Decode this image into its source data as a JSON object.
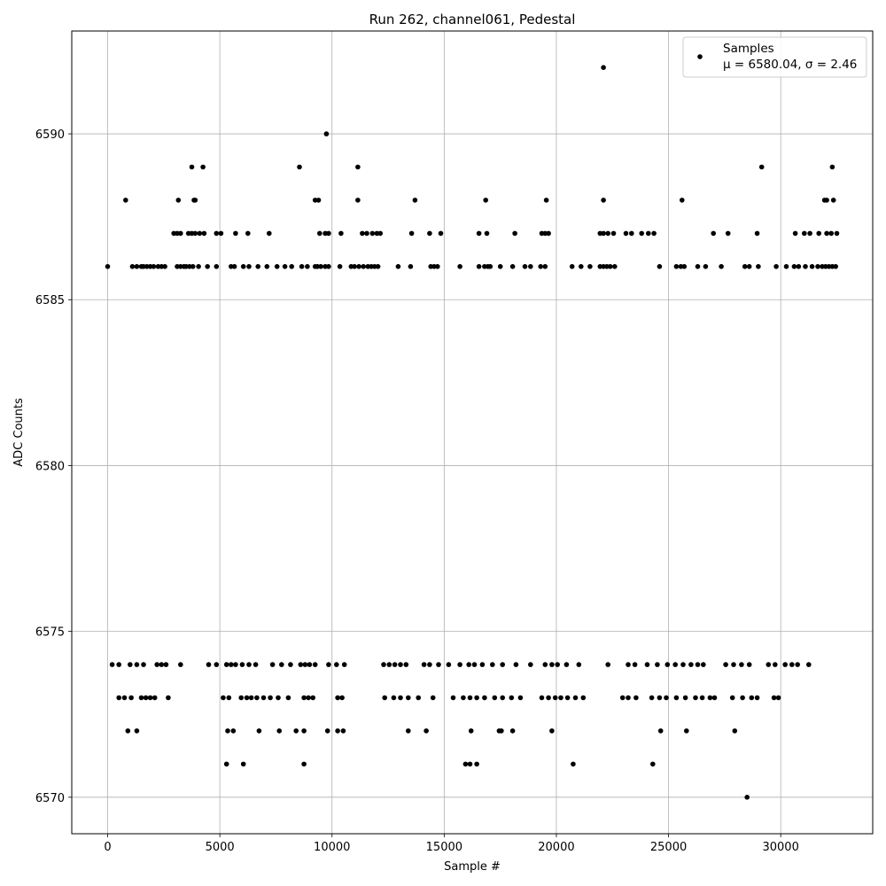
{
  "chart_data": {
    "type": "scatter",
    "title": "Run 262, channel061, Pedestal",
    "xlabel": "Sample #",
    "ylabel": "ADC Counts",
    "xlim": [
      -1600,
      34100
    ],
    "ylim": [
      6568.9,
      6593.1
    ],
    "xticks": [
      0,
      5000,
      10000,
      15000,
      20000,
      25000,
      30000
    ],
    "yticks": [
      6570,
      6575,
      6580,
      6585,
      6590
    ],
    "grid": true,
    "marker_color": "#000000",
    "legend": {
      "placement": "top-right",
      "entry_label": "Samples",
      "stats_line": "μ = 6580.04, σ = 2.46"
    },
    "series": [
      {
        "name": "Samples",
        "mu": 6580.04,
        "sigma": 2.46,
        "bands": [
          {
            "y": 6586,
            "x": [
              0,
              1100,
              1300,
              1500,
              1600,
              1750,
              1900,
              2050,
              2250,
              2400,
              2550,
              3100,
              3250,
              3400,
              3500,
              3650,
              3800,
              4050,
              4450,
              4850,
              5500,
              5650,
              6050,
              6300,
              6700,
              7100,
              7550,
              7900,
              8200,
              8650,
              8900,
              9250,
              9350,
              9500,
              9700,
              9850,
              10350,
              10850,
              11000,
              11200,
              11400,
              11600,
              11750,
              11900,
              12050,
              12950,
              13500,
              14400,
              14550,
              14700,
              15700,
              16550,
              16800,
              16950,
              17050,
              17500,
              18050,
              18600,
              18850,
              19300,
              19500,
              20700,
              21100,
              21500,
              21950,
              22100,
              22250,
              22400,
              22600,
              24600,
              25350,
              25550,
              25700,
              26300,
              26650,
              27350,
              28400,
              28600,
              29000,
              29800,
              30250,
              30600,
              30800,
              31100,
              31400,
              31650,
              31850,
              32000,
              32150,
              32300,
              32450
            ]
          },
          {
            "y": 6587,
            "x": [
              2950,
              3100,
              3250,
              3600,
              3750,
              3900,
              4100,
              4300,
              4850,
              5050,
              5700,
              6250,
              7200,
              9450,
              9700,
              9850,
              10400,
              11350,
              11550,
              11800,
              12000,
              12150,
              13550,
              14350,
              14850,
              16550,
              16900,
              18150,
              19350,
              19500,
              19650,
              21950,
              22100,
              22300,
              22550,
              23100,
              23350,
              23800,
              24100,
              24350,
              27000,
              27650,
              28950,
              30650,
              31050,
              31300,
              31700,
              32050,
              32250,
              32500
            ]
          },
          {
            "y": 6588,
            "x": [
              800,
              3150,
              3850,
              3900,
              9250,
              9400,
              11150,
              13700,
              16850,
              19550,
              22100,
              25600,
              31950,
              32050,
              32350
            ]
          },
          {
            "y": 6589,
            "x": [
              3750,
              4250,
              8550,
              11150,
              29150,
              32300
            ]
          },
          {
            "y": 6590,
            "x": [
              9750
            ]
          },
          {
            "y": 6592,
            "x": [
              22100
            ]
          },
          {
            "y": 6574,
            "x": [
              200,
              500,
              1000,
              1300,
              1600,
              2200,
              2400,
              2600,
              3250,
              4500,
              4850,
              5300,
              5500,
              5700,
              6000,
              6300,
              6600,
              7350,
              7750,
              8150,
              8600,
              8800,
              9000,
              9250,
              9850,
              10200,
              10550,
              12300,
              12550,
              12800,
              13050,
              13300,
              14100,
              14350,
              14750,
              15200,
              15700,
              16100,
              16350,
              16700,
              17150,
              17600,
              18200,
              18850,
              19500,
              19800,
              20050,
              20450,
              21000,
              22300,
              23200,
              23500,
              24050,
              24500,
              24950,
              25300,
              25650,
              26000,
              26300,
              26550,
              27550,
              27900,
              28250,
              28600,
              29450,
              29750,
              30200,
              30500,
              30750,
              31250
            ]
          },
          {
            "y": 6573,
            "x": [
              500,
              750,
              1050,
              1500,
              1700,
              1900,
              2100,
              2700,
              5150,
              5400,
              5950,
              6200,
              6400,
              6650,
              6950,
              7250,
              7600,
              8050,
              8750,
              8950,
              9150,
              10250,
              10450,
              12350,
              12750,
              13050,
              13400,
              13850,
              14500,
              15400,
              15850,
              16150,
              16450,
              16800,
              17250,
              17600,
              18000,
              18400,
              19350,
              19650,
              19950,
              20200,
              20500,
              20850,
              21200,
              22950,
              23200,
              23550,
              24250,
              24600,
              24900,
              25350,
              25750,
              26200,
              26500,
              26850,
              27050,
              27850,
              28300,
              28700,
              28950,
              29700,
              29900
            ]
          },
          {
            "y": 6572,
            "x": [
              900,
              1300,
              5350,
              5600,
              6750,
              7650,
              8400,
              8750,
              9800,
              10250,
              10500,
              13400,
              14200,
              16200,
              17450,
              17550,
              18050,
              19800,
              24650,
              25800,
              27950
            ]
          },
          {
            "y": 6571,
            "x": [
              5300,
              6050,
              8750,
              15950,
              16150,
              16450,
              20750,
              24300
            ]
          },
          {
            "y": 6570,
            "x": [
              28500
            ]
          }
        ]
      }
    ]
  }
}
